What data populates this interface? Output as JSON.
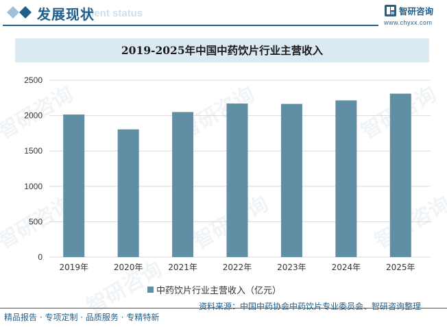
{
  "header": {
    "title": "发展现状",
    "subtitle": "ment status",
    "logo_text": "智研咨询",
    "logo_url": "www.chyxx.com"
  },
  "colors": {
    "brand": "#1f5f8b",
    "bar": "#5f8ea5",
    "title_band": "#dbe9f3"
  },
  "watermark_text": "智研咨询",
  "chart_data": {
    "type": "bar",
    "title": "2019-2025年中国中药饮片行业主营收入",
    "categories": [
      "2019年",
      "2020年",
      "2021年",
      "2022年",
      "2023年",
      "2024年",
      "2025年"
    ],
    "series": [
      {
        "name": "中药饮片行业主营收入（亿元）",
        "values": [
          2015,
          1805,
          2050,
          2170,
          2165,
          2215,
          2310
        ]
      }
    ],
    "ylim": [
      0,
      2500
    ],
    "yticks": [
      0,
      500,
      1000,
      1500,
      2000,
      2500
    ],
    "grid": true,
    "legend_position": "bottom"
  },
  "footer": {
    "left": "精品报告 · 专项定制 · 品质服务 · 专精特新",
    "source": "资料来源：中国中药协会中药饮片专业委员会、智研咨询整理"
  }
}
